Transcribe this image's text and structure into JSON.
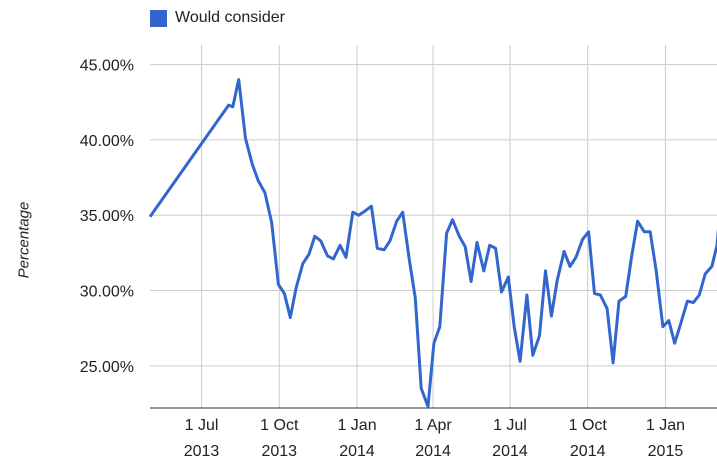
{
  "chart_data": {
    "type": "line",
    "title": "",
    "xlabel": "",
    "ylabel": "Percentage",
    "ylim": [
      22.2,
      46.3
    ],
    "xlim": [
      "2013-05-01",
      "2015-03-03"
    ],
    "grid": true,
    "legend": "top",
    "y_ticks": [
      "45.00%",
      "40.00%",
      "35.00%",
      "30.00%",
      "25.00%"
    ],
    "y_tick_values": [
      45,
      40,
      35,
      30,
      25
    ],
    "x_ticks": [
      {
        "date": "2013-07-01",
        "label_line1": "1 Jul",
        "label_line2": "2013"
      },
      {
        "date": "2013-10-01",
        "label_line1": "1 Oct",
        "label_line2": "2013"
      },
      {
        "date": "2014-01-01",
        "label_line1": "1 Jan",
        "label_line2": "2014"
      },
      {
        "date": "2014-04-01",
        "label_line1": "1 Apr",
        "label_line2": "2014"
      },
      {
        "date": "2014-07-01",
        "label_line1": "1 Jul",
        "label_line2": "2014"
      },
      {
        "date": "2014-10-01",
        "label_line1": "1 Oct",
        "label_line2": "2014"
      },
      {
        "date": "2015-01-01",
        "label_line1": "1 Jan",
        "label_line2": "2015"
      }
    ],
    "series": [
      {
        "name": "Would consider",
        "color": "#3366cc",
        "points": [
          [
            "2013-05-01",
            34.9
          ],
          [
            "2013-08-02",
            42.3
          ],
          [
            "2013-08-07",
            42.2
          ],
          [
            "2013-08-14",
            44.0
          ],
          [
            "2013-08-22",
            40.1
          ],
          [
            "2013-08-30",
            38.4
          ],
          [
            "2013-09-06",
            37.3
          ],
          [
            "2013-09-14",
            36.5
          ],
          [
            "2013-09-22",
            34.5
          ],
          [
            "2013-09-30",
            30.4
          ],
          [
            "2013-10-07",
            29.8
          ],
          [
            "2013-10-14",
            28.2
          ],
          [
            "2013-10-21",
            30.2
          ],
          [
            "2013-10-29",
            31.8
          ],
          [
            "2013-11-05",
            32.4
          ],
          [
            "2013-11-12",
            33.6
          ],
          [
            "2013-11-19",
            33.3
          ],
          [
            "2013-11-27",
            32.3
          ],
          [
            "2013-12-04",
            32.1
          ],
          [
            "2013-12-12",
            33.0
          ],
          [
            "2013-12-19",
            32.2
          ],
          [
            "2013-12-27",
            35.2
          ],
          [
            "2014-01-03",
            35.0
          ],
          [
            "2014-01-11",
            35.3
          ],
          [
            "2014-01-18",
            35.6
          ],
          [
            "2014-01-25",
            32.8
          ],
          [
            "2014-02-02",
            32.7
          ],
          [
            "2014-02-09",
            33.3
          ],
          [
            "2014-02-17",
            34.6
          ],
          [
            "2014-02-24",
            35.2
          ],
          [
            "2014-03-04",
            32.0
          ],
          [
            "2014-03-11",
            29.5
          ],
          [
            "2014-03-18",
            23.5
          ],
          [
            "2014-03-26",
            22.3
          ],
          [
            "2014-04-02",
            26.5
          ],
          [
            "2014-04-09",
            27.6
          ],
          [
            "2014-04-17",
            33.8
          ],
          [
            "2014-04-24",
            34.7
          ],
          [
            "2014-05-02",
            33.6
          ],
          [
            "2014-05-09",
            32.9
          ],
          [
            "2014-05-16",
            30.6
          ],
          [
            "2014-05-23",
            33.2
          ],
          [
            "2014-05-31",
            31.3
          ],
          [
            "2014-06-07",
            33.0
          ],
          [
            "2014-06-14",
            32.8
          ],
          [
            "2014-06-21",
            29.9
          ],
          [
            "2014-06-29",
            30.9
          ],
          [
            "2014-07-06",
            27.6
          ],
          [
            "2014-07-13",
            25.3
          ],
          [
            "2014-07-21",
            29.7
          ],
          [
            "2014-07-28",
            25.7
          ],
          [
            "2014-08-05",
            27.0
          ],
          [
            "2014-08-12",
            31.3
          ],
          [
            "2014-08-19",
            28.3
          ],
          [
            "2014-08-26",
            30.7
          ],
          [
            "2014-09-03",
            32.6
          ],
          [
            "2014-09-10",
            31.6
          ],
          [
            "2014-09-17",
            32.2
          ],
          [
            "2014-09-25",
            33.4
          ],
          [
            "2014-10-02",
            33.9
          ],
          [
            "2014-10-09",
            29.8
          ],
          [
            "2014-10-16",
            29.7
          ],
          [
            "2014-10-24",
            28.8
          ],
          [
            "2014-10-31",
            25.2
          ],
          [
            "2014-11-07",
            29.3
          ],
          [
            "2014-11-15",
            29.6
          ],
          [
            "2014-11-22",
            32.3
          ],
          [
            "2014-11-29",
            34.6
          ],
          [
            "2014-12-07",
            33.9
          ],
          [
            "2014-12-14",
            33.9
          ],
          [
            "2014-12-21",
            31.3
          ],
          [
            "2014-12-29",
            27.6
          ],
          [
            "2015-01-05",
            28.0
          ],
          [
            "2015-01-12",
            26.5
          ],
          [
            "2015-01-19",
            27.8
          ],
          [
            "2015-01-27",
            29.3
          ],
          [
            "2015-02-03",
            29.2
          ],
          [
            "2015-02-10",
            29.7
          ],
          [
            "2015-02-17",
            31.1
          ],
          [
            "2015-02-25",
            31.6
          ],
          [
            "2015-03-03",
            33.0
          ],
          [
            "2015-03-07",
            35.5
          ]
        ]
      }
    ]
  }
}
